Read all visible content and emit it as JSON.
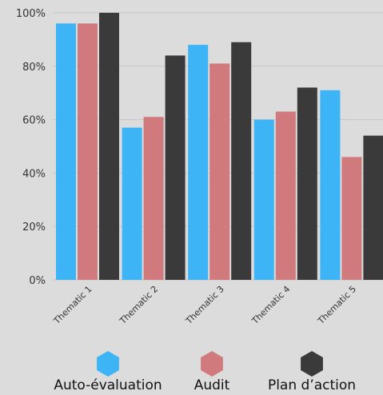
{
  "chart_data": {
    "type": "bar",
    "categories": [
      "Thematic 1",
      "Thematic 2",
      "Thematic 3",
      "Thematic 4",
      "Thematic 5"
    ],
    "series": [
      {
        "name": "Auto-évaluation",
        "color": "#3db4f5",
        "values": [
          96,
          57,
          88,
          60,
          71
        ]
      },
      {
        "name": "Audit",
        "color": "#d07a7d",
        "values": [
          96,
          61,
          81,
          63,
          46
        ]
      },
      {
        "name": "Plan d’action",
        "color": "#3a3a3a",
        "values": [
          100,
          84,
          89,
          72,
          54
        ]
      }
    ],
    "ylim": [
      0,
      100
    ],
    "yticks": [
      "0%",
      "20%",
      "40%",
      "60%",
      "80%",
      "100%"
    ],
    "ytick_values": [
      0,
      20,
      40,
      60,
      80,
      100
    ],
    "grid": true,
    "legend_position": "bottom",
    "legend_marker": "hexagon-icon"
  }
}
